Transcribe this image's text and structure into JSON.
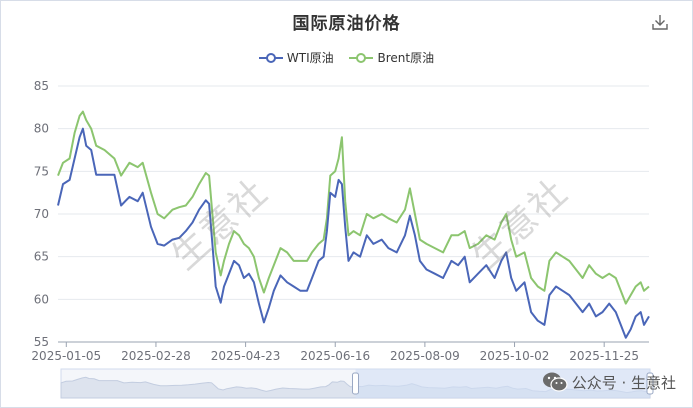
{
  "header": {
    "title": "国际原油价格",
    "download_icon": "download-icon"
  },
  "watermark": "生意社",
  "footer": {
    "icon": "wechat-icon",
    "text": "公众号 · 生意社"
  },
  "colors": {
    "wti": "#4a66b8",
    "brent": "#8cc56f",
    "grid": "#e6e9ee",
    "axis": "#9aa3b1",
    "slider_fill": "#d2e0f5"
  },
  "chart_data": {
    "type": "line",
    "title": "国际原油价格",
    "ylim": [
      55,
      85
    ],
    "yticks": [
      55,
      60,
      65,
      70,
      75,
      80,
      85
    ],
    "xlim": [
      "2024-12-31",
      "2025-12-22"
    ],
    "xticks": [
      "2025-01-05",
      "2025-02-28",
      "2025-04-23",
      "2025-06-16",
      "2025-08-09",
      "2025-10-02",
      "2025-11-25"
    ],
    "grid": true,
    "legend_position": "top-center",
    "zoom_slider_range": [
      0.5,
      1.0
    ],
    "series": [
      {
        "name": "WTI原油",
        "points": [
          [
            "2024-12-31",
            71.0
          ],
          [
            "2025-01-03",
            73.5
          ],
          [
            "2025-01-07",
            74.0
          ],
          [
            "2025-01-10",
            76.5
          ],
          [
            "2025-01-13",
            79.0
          ],
          [
            "2025-01-15",
            80.0
          ],
          [
            "2025-01-17",
            78.0
          ],
          [
            "2025-01-20",
            77.5
          ],
          [
            "2025-01-23",
            74.6
          ],
          [
            "2025-01-28",
            74.6
          ],
          [
            "2025-02-03",
            74.6
          ],
          [
            "2025-02-07",
            71.0
          ],
          [
            "2025-02-12",
            72.0
          ],
          [
            "2025-02-17",
            71.5
          ],
          [
            "2025-02-20",
            72.5
          ],
          [
            "2025-02-25",
            68.5
          ],
          [
            "2025-03-01",
            66.5
          ],
          [
            "2025-03-05",
            66.3
          ],
          [
            "2025-03-10",
            67.0
          ],
          [
            "2025-03-14",
            67.2
          ],
          [
            "2025-03-18",
            68.0
          ],
          [
            "2025-03-22",
            69.0
          ],
          [
            "2025-03-26",
            70.5
          ],
          [
            "2025-03-30",
            71.6
          ],
          [
            "2025-04-01",
            71.2
          ],
          [
            "2025-04-03",
            66.5
          ],
          [
            "2025-04-05",
            61.5
          ],
          [
            "2025-04-08",
            59.6
          ],
          [
            "2025-04-10",
            61.5
          ],
          [
            "2025-04-13",
            63.0
          ],
          [
            "2025-04-16",
            64.5
          ],
          [
            "2025-04-19",
            64.0
          ],
          [
            "2025-04-22",
            62.5
          ],
          [
            "2025-04-25",
            63.0
          ],
          [
            "2025-04-28",
            62.0
          ],
          [
            "2025-05-01",
            59.5
          ],
          [
            "2025-05-04",
            57.3
          ],
          [
            "2025-05-07",
            59.0
          ],
          [
            "2025-05-10",
            61.0
          ],
          [
            "2025-05-14",
            62.8
          ],
          [
            "2025-05-18",
            62.0
          ],
          [
            "2025-05-22",
            61.5
          ],
          [
            "2025-05-26",
            61.0
          ],
          [
            "2025-05-30",
            61.0
          ],
          [
            "2025-06-02",
            62.5
          ],
          [
            "2025-06-06",
            64.5
          ],
          [
            "2025-06-09",
            65.0
          ],
          [
            "2025-06-11",
            68.0
          ],
          [
            "2025-06-13",
            72.5
          ],
          [
            "2025-06-16",
            72.0
          ],
          [
            "2025-06-18",
            74.0
          ],
          [
            "2025-06-20",
            73.5
          ],
          [
            "2025-06-22",
            68.5
          ],
          [
            "2025-06-24",
            64.5
          ],
          [
            "2025-06-27",
            65.5
          ],
          [
            "2025-07-01",
            65.0
          ],
          [
            "2025-07-05",
            67.5
          ],
          [
            "2025-07-09",
            66.5
          ],
          [
            "2025-07-14",
            67.0
          ],
          [
            "2025-07-18",
            66.0
          ],
          [
            "2025-07-23",
            65.5
          ],
          [
            "2025-07-28",
            67.5
          ],
          [
            "2025-07-31",
            69.8
          ],
          [
            "2025-08-03",
            67.5
          ],
          [
            "2025-08-06",
            64.5
          ],
          [
            "2025-08-10",
            63.5
          ],
          [
            "2025-08-15",
            63.0
          ],
          [
            "2025-08-20",
            62.5
          ],
          [
            "2025-08-25",
            64.5
          ],
          [
            "2025-08-29",
            64.0
          ],
          [
            "2025-09-02",
            65.0
          ],
          [
            "2025-09-05",
            62.0
          ],
          [
            "2025-09-10",
            63.0
          ],
          [
            "2025-09-15",
            64.0
          ],
          [
            "2025-09-20",
            62.5
          ],
          [
            "2025-09-24",
            64.5
          ],
          [
            "2025-09-27",
            65.5
          ],
          [
            "2025-09-30",
            62.5
          ],
          [
            "2025-10-03",
            61.0
          ],
          [
            "2025-10-08",
            62.0
          ],
          [
            "2025-10-12",
            58.5
          ],
          [
            "2025-10-16",
            57.5
          ],
          [
            "2025-10-20",
            57.0
          ],
          [
            "2025-10-23",
            60.5
          ],
          [
            "2025-10-27",
            61.5
          ],
          [
            "2025-10-31",
            61.0
          ],
          [
            "2025-11-04",
            60.5
          ],
          [
            "2025-11-08",
            59.5
          ],
          [
            "2025-11-12",
            58.5
          ],
          [
            "2025-11-16",
            59.5
          ],
          [
            "2025-11-20",
            58.0
          ],
          [
            "2025-11-24",
            58.5
          ],
          [
            "2025-11-28",
            59.5
          ],
          [
            "2025-12-02",
            58.5
          ],
          [
            "2025-12-05",
            57.0
          ],
          [
            "2025-12-08",
            55.5
          ],
          [
            "2025-12-11",
            56.5
          ],
          [
            "2025-12-14",
            58.0
          ],
          [
            "2025-12-17",
            58.5
          ],
          [
            "2025-12-19",
            57.0
          ],
          [
            "2025-12-22",
            58.0
          ]
        ]
      },
      {
        "name": "Brent原油",
        "points": [
          [
            "2024-12-31",
            74.5
          ],
          [
            "2025-01-03",
            76.0
          ],
          [
            "2025-01-07",
            76.5
          ],
          [
            "2025-01-10",
            79.5
          ],
          [
            "2025-01-13",
            81.5
          ],
          [
            "2025-01-15",
            82.0
          ],
          [
            "2025-01-17",
            81.0
          ],
          [
            "2025-01-20",
            80.0
          ],
          [
            "2025-01-23",
            78.0
          ],
          [
            "2025-01-28",
            77.5
          ],
          [
            "2025-02-03",
            76.5
          ],
          [
            "2025-02-07",
            74.5
          ],
          [
            "2025-02-12",
            76.0
          ],
          [
            "2025-02-17",
            75.5
          ],
          [
            "2025-02-20",
            76.0
          ],
          [
            "2025-02-25",
            72.5
          ],
          [
            "2025-03-01",
            70.0
          ],
          [
            "2025-03-05",
            69.5
          ],
          [
            "2025-03-10",
            70.5
          ],
          [
            "2025-03-14",
            70.8
          ],
          [
            "2025-03-18",
            71.0
          ],
          [
            "2025-03-22",
            72.0
          ],
          [
            "2025-03-26",
            73.5
          ],
          [
            "2025-03-30",
            74.8
          ],
          [
            "2025-04-01",
            74.5
          ],
          [
            "2025-04-03",
            70.0
          ],
          [
            "2025-04-05",
            65.5
          ],
          [
            "2025-04-08",
            62.8
          ],
          [
            "2025-04-10",
            64.5
          ],
          [
            "2025-04-13",
            66.5
          ],
          [
            "2025-04-16",
            68.0
          ],
          [
            "2025-04-19",
            67.5
          ],
          [
            "2025-04-22",
            66.5
          ],
          [
            "2025-04-25",
            66.0
          ],
          [
            "2025-04-28",
            65.0
          ],
          [
            "2025-05-01",
            62.5
          ],
          [
            "2025-05-04",
            60.8
          ],
          [
            "2025-05-07",
            62.5
          ],
          [
            "2025-05-10",
            64.0
          ],
          [
            "2025-05-14",
            66.0
          ],
          [
            "2025-05-18",
            65.5
          ],
          [
            "2025-05-22",
            64.5
          ],
          [
            "2025-05-26",
            64.5
          ],
          [
            "2025-05-30",
            64.5
          ],
          [
            "2025-06-02",
            65.5
          ],
          [
            "2025-06-06",
            66.5
          ],
          [
            "2025-06-09",
            67.0
          ],
          [
            "2025-06-11",
            69.5
          ],
          [
            "2025-06-13",
            74.5
          ],
          [
            "2025-06-16",
            75.0
          ],
          [
            "2025-06-18",
            76.5
          ],
          [
            "2025-06-20",
            79.0
          ],
          [
            "2025-06-22",
            71.5
          ],
          [
            "2025-06-24",
            67.5
          ],
          [
            "2025-06-27",
            68.0
          ],
          [
            "2025-07-01",
            67.5
          ],
          [
            "2025-07-05",
            70.0
          ],
          [
            "2025-07-09",
            69.5
          ],
          [
            "2025-07-14",
            70.0
          ],
          [
            "2025-07-18",
            69.5
          ],
          [
            "2025-07-23",
            69.0
          ],
          [
            "2025-07-28",
            70.5
          ],
          [
            "2025-07-31",
            73.0
          ],
          [
            "2025-08-03",
            70.0
          ],
          [
            "2025-08-06",
            67.0
          ],
          [
            "2025-08-10",
            66.5
          ],
          [
            "2025-08-15",
            66.0
          ],
          [
            "2025-08-20",
            65.5
          ],
          [
            "2025-08-25",
            67.5
          ],
          [
            "2025-08-29",
            67.5
          ],
          [
            "2025-09-02",
            68.0
          ],
          [
            "2025-09-05",
            66.0
          ],
          [
            "2025-09-10",
            66.5
          ],
          [
            "2025-09-15",
            67.5
          ],
          [
            "2025-09-20",
            67.0
          ],
          [
            "2025-09-24",
            69.0
          ],
          [
            "2025-09-27",
            70.0
          ],
          [
            "2025-09-30",
            67.0
          ],
          [
            "2025-10-03",
            65.0
          ],
          [
            "2025-10-08",
            65.5
          ],
          [
            "2025-10-12",
            62.5
          ],
          [
            "2025-10-16",
            61.5
          ],
          [
            "2025-10-20",
            61.0
          ],
          [
            "2025-10-23",
            64.5
          ],
          [
            "2025-10-27",
            65.5
          ],
          [
            "2025-10-31",
            65.0
          ],
          [
            "2025-11-04",
            64.5
          ],
          [
            "2025-11-08",
            63.5
          ],
          [
            "2025-11-12",
            62.5
          ],
          [
            "2025-11-16",
            64.0
          ],
          [
            "2025-11-20",
            63.0
          ],
          [
            "2025-11-24",
            62.5
          ],
          [
            "2025-11-28",
            63.0
          ],
          [
            "2025-12-02",
            62.5
          ],
          [
            "2025-12-05",
            61.0
          ],
          [
            "2025-12-08",
            59.5
          ],
          [
            "2025-12-11",
            60.5
          ],
          [
            "2025-12-14",
            61.5
          ],
          [
            "2025-12-17",
            62.0
          ],
          [
            "2025-12-19",
            61.0
          ],
          [
            "2025-12-22",
            61.5
          ]
        ]
      }
    ]
  }
}
